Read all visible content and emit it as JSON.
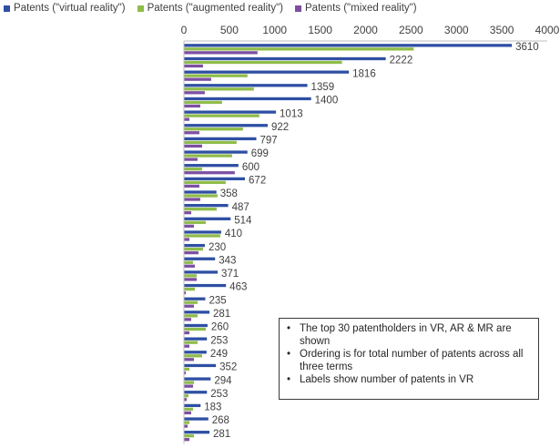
{
  "legend": [
    {
      "label": "Patents (\"virtual reality\")",
      "color": "#2e4fa3"
    },
    {
      "label": "Patents (\"augmented reality\")",
      "color": "#8fbc4a"
    },
    {
      "label": "Patents (\"mixed reality\")",
      "color": "#7d4fa3"
    }
  ],
  "notes": [
    "The top 30 patentholders in VR, AR & MR are shown",
    "Ordering is for total number of patents across all three terms",
    "Labels show number of patents in VR"
  ],
  "chart_data": {
    "type": "bar",
    "orientation": "horizontal",
    "xlim": [
      0,
      4000
    ],
    "xticks": [
      0,
      500,
      1000,
      1500,
      2000,
      2500,
      3000,
      3500,
      4000
    ],
    "grid": false,
    "legend_position": "top-left",
    "categories_visible": false,
    "data_labels": "virtual reality series",
    "series": [
      {
        "name": "Patents (\"virtual reality\")",
        "values": [
          3610,
          2222,
          1816,
          1359,
          1400,
          1013,
          922,
          797,
          699,
          600,
          672,
          358,
          487,
          514,
          410,
          230,
          343,
          371,
          463,
          235,
          281,
          260,
          253,
          249,
          352,
          294,
          253,
          183,
          268,
          281
        ]
      },
      {
        "name": "Patents (\"augmented reality\")",
        "values": [
          2530,
          1740,
          700,
          770,
          420,
          830,
          650,
          580,
          530,
          200,
          460,
          370,
          360,
          240,
          400,
          210,
          100,
          140,
          120,
          150,
          150,
          240,
          150,
          200,
          60,
          110,
          50,
          100,
          60,
          110
        ]
      },
      {
        "name": "Patents (\"mixed reality\")",
        "values": [
          810,
          210,
          300,
          230,
          180,
          60,
          170,
          200,
          150,
          560,
          170,
          180,
          80,
          110,
          60,
          160,
          120,
          140,
          20,
          110,
          80,
          60,
          60,
          110,
          20,
          100,
          30,
          80,
          40,
          60
        ]
      }
    ]
  }
}
